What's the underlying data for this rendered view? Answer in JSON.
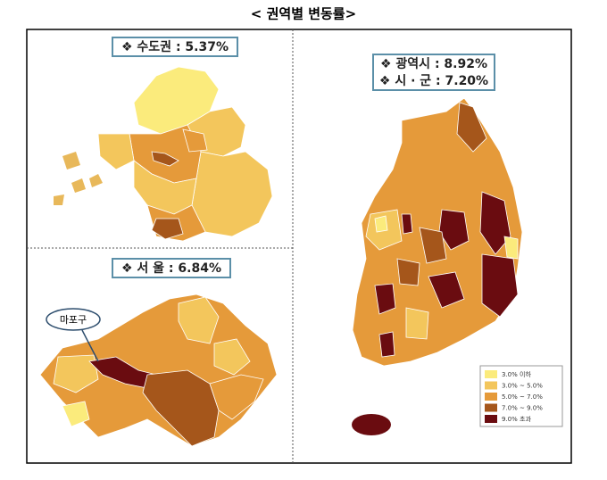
{
  "title": "< 권역별 변동률>",
  "capital": {
    "label": "❖ 수도권 : 5.37%"
  },
  "seoul": {
    "label": "❖ 서 울 : 6.84%",
    "callout": "마포구"
  },
  "nation": {
    "labels": [
      "❖ 광역시 : 8.92%",
      "❖ 시 · 군 : 7.20%"
    ]
  },
  "legend": [
    {
      "label": "3.0% 이하",
      "color": "#fbeb7c"
    },
    {
      "label": "3.0% ~ 5.0%",
      "color": "#f3c65c"
    },
    {
      "label": "5.0% ~ 7.0%",
      "color": "#e59a3a"
    },
    {
      "label": "7.0% ~ 9.0%",
      "color": "#a5561b"
    },
    {
      "label": "9.0% 초과",
      "color": "#6a0c10"
    }
  ]
}
